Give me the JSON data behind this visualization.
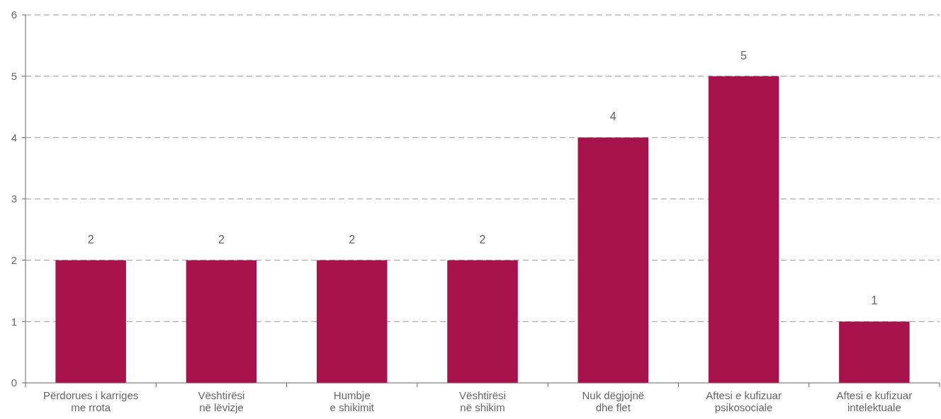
{
  "chart_data": {
    "type": "bar",
    "categories": [
      "Përdorues i karriges\nme rrota",
      "Vështirësi\nnë lëvizje",
      "Humbje\ne shikimit",
      "Vështirësi\nnë shikim",
      "Nuk dëgjojnë\ndhe flet",
      "Aftesi e kufizuar\npsikosociale",
      "Aftesi e kufizuar\nintelektuale"
    ],
    "values": [
      2,
      2,
      2,
      2,
      4,
      5,
      1
    ],
    "color": "#a8124a",
    "ylim": [
      0,
      6
    ],
    "yticks": [
      0,
      1,
      2,
      3,
      4,
      5,
      6
    ],
    "grid": "y",
    "data_labels": true
  }
}
